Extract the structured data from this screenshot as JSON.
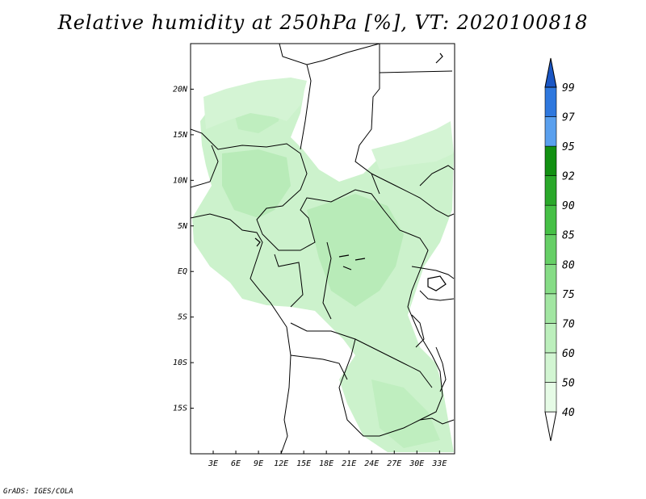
{
  "title": "Relative humidity at 250hPa [%], VT: 2020100818",
  "credit": "GrADS: IGES/COLA",
  "map": {
    "lat_labels": [
      "20N",
      "15N",
      "10N",
      "5N",
      "EQ",
      "5S",
      "10S",
      "15S"
    ],
    "lon_labels": [
      "3E",
      "6E",
      "9E",
      "12E",
      "15E",
      "18E",
      "21E",
      "24E",
      "27E",
      "30E",
      "33E"
    ],
    "lat_values": [
      20,
      15,
      10,
      5,
      0,
      -5,
      -10,
      -15
    ],
    "lon_values": [
      3,
      6,
      9,
      12,
      15,
      18,
      21,
      24,
      27,
      30,
      33
    ],
    "lat_range": [
      -20,
      25
    ],
    "lon_range": [
      0,
      35
    ]
  },
  "colorbar": {
    "levels": [
      "40",
      "50",
      "60",
      "70",
      "75",
      "80",
      "85",
      "90",
      "92",
      "95",
      "97",
      "99"
    ],
    "colors": [
      "#ffffff",
      "#e6fbe6",
      "#d2f5d2",
      "#bcefbc",
      "#a2e6a2",
      "#86dc86",
      "#66cf66",
      "#46c046",
      "#2aa82a",
      "#129012",
      "#5aa0ee",
      "#2f78de",
      "#1a56c4"
    ]
  }
}
